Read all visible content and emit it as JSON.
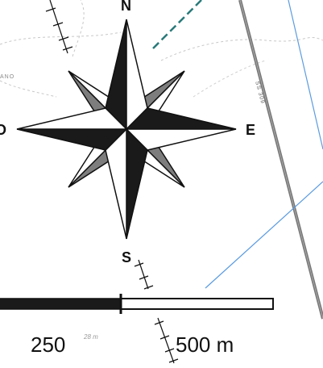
{
  "compass": {
    "north": "N",
    "south": "S",
    "east": "E",
    "west": "O"
  },
  "scale_bar": {
    "label_mid": "250",
    "label_end": "500 m"
  },
  "map_labels": {
    "road_name": "SS 309",
    "elevation": "28 m",
    "place_fragment": "ANO"
  },
  "colors": {
    "dark_arm": "#1a1a1a",
    "light_arm": "#ffffff",
    "grey_arm": "#7d7d7d",
    "road": "#777777",
    "water": "#5b9be0",
    "trail": "#2a7a7a",
    "path_dash": "#b5b5b5"
  }
}
